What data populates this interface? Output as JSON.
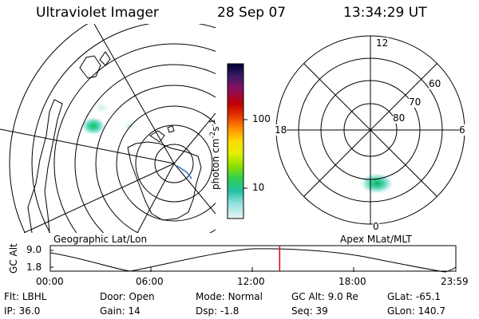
{
  "header": {
    "instrument": "Ultraviolet Imager",
    "date": "28 Sep 07",
    "time": "13:34:29 UT"
  },
  "geo_panel": {
    "label": "Geographic Lat/Lon"
  },
  "colorbar": {
    "unit_label": "photon cm",
    "unit_sup1": "-2",
    "unit_mid": "s",
    "unit_sup2": "-1",
    "ticks": [
      "100",
      "10"
    ],
    "scale": "log",
    "colors": [
      "#000033",
      "#3a1a66",
      "#6e1f80",
      "#9a1040",
      "#c20000",
      "#e83a00",
      "#ff8c00",
      "#ffd000",
      "#e8f000",
      "#a0e000",
      "#40d040",
      "#10c080",
      "#40d0c0",
      "#a0e8e0",
      "#e0f4f2"
    ]
  },
  "polar_panel": {
    "label": "Apex MLat/MLT",
    "mlt_labels": [
      "12",
      "18",
      "6",
      "0"
    ],
    "lat_labels": [
      "60",
      "70",
      "80"
    ]
  },
  "altitude_plot": {
    "ylabel": "GC Alt",
    "yticks": [
      "9.0",
      "1.8"
    ],
    "xticks": [
      "00:00",
      "06:00",
      "12:00",
      "18:00",
      "23:59"
    ],
    "marker_color": "#e00000",
    "marker_time_fraction": 0.5656
  },
  "info": {
    "row1": [
      {
        "key": "Flt:",
        "value": "LBHL"
      },
      {
        "key": "Door:",
        "value": "Open"
      },
      {
        "key": "Mode:",
        "value": "Normal"
      },
      {
        "key": "GC Alt:",
        "value": "9.0 Re"
      },
      {
        "key": "GLat:",
        "value": "-65.1"
      }
    ],
    "row2": [
      {
        "key": "IP:",
        "value": "36.0"
      },
      {
        "key": "Gain:",
        "value": "14"
      },
      {
        "key": "Dsp:",
        "value": "-1.8"
      },
      {
        "key": "Seq:",
        "value": "39"
      },
      {
        "key": "GLon:",
        "value": "140.7"
      }
    ]
  }
}
